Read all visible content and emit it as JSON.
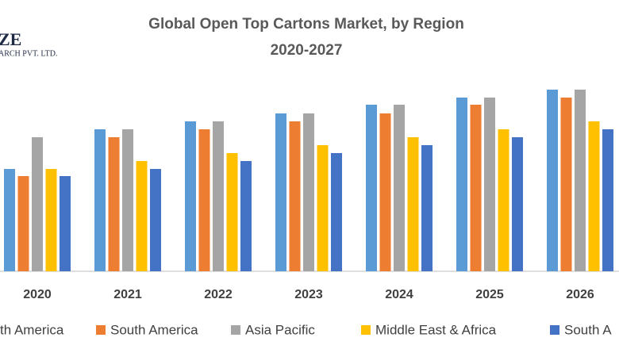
{
  "logo": {
    "line1": "ZE",
    "line2": "ARCH PVT. LTD."
  },
  "chart_data": {
    "type": "bar",
    "title": "Global Open Top Cartons Market, by Region",
    "subtitle": "2020-2027",
    "categories": [
      "2020",
      "2021",
      "2022",
      "2023",
      "2024",
      "2025",
      "2026"
    ],
    "series": [
      {
        "name": "th America",
        "color": "#5b9bd5",
        "values": [
          129,
          179,
          189,
          199,
          210,
          219,
          229
        ]
      },
      {
        "name": "South America",
        "color": "#ed7d31",
        "values": [
          120,
          169,
          179,
          189,
          199,
          210,
          219
        ]
      },
      {
        "name": "Asia Pacific",
        "color": "#a5a5a5",
        "values": [
          169,
          179,
          189,
          199,
          210,
          219,
          229
        ]
      },
      {
        "name": "Middle East & Africa",
        "color": "#ffc000",
        "values": [
          129,
          139,
          149,
          159,
          169,
          179,
          189
        ]
      },
      {
        "name": "South A",
        "color": "#4472c4",
        "values": [
          120,
          129,
          139,
          149,
          159,
          169,
          179
        ]
      }
    ]
  }
}
